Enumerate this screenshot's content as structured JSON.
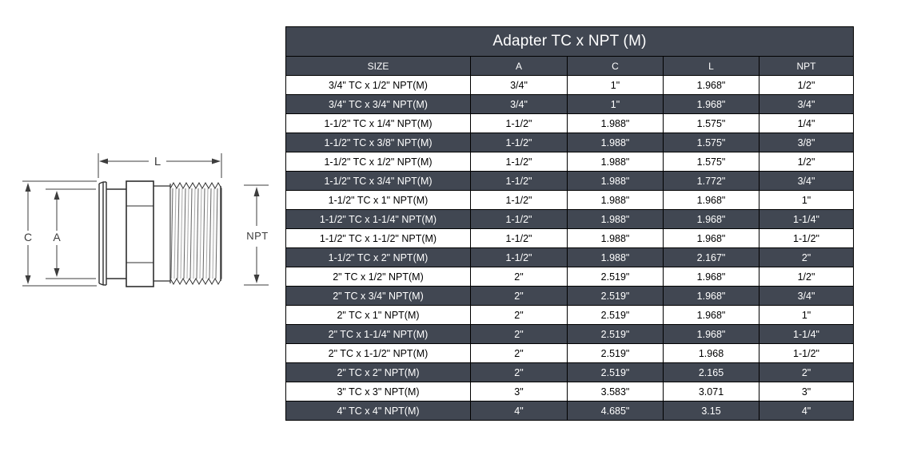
{
  "diagram": {
    "labels": {
      "length": "L",
      "clamp_od": "C",
      "tube_od": "A",
      "thread": "NPT"
    }
  },
  "table": {
    "title": "Adapter TC x NPT (M)",
    "columns": [
      "SIZE",
      "A",
      "C",
      "L",
      "NPT"
    ],
    "rows": [
      [
        "3/4\" TC x 1/2\" NPT(M)",
        "3/4\"",
        "1\"",
        "1.968\"",
        "1/2\""
      ],
      [
        "3/4\" TC x 3/4\" NPT(M)",
        "3/4\"",
        "1\"",
        "1.968\"",
        "3/4\""
      ],
      [
        "1-1/2\" TC x 1/4\" NPT(M)",
        "1-1/2\"",
        "1.988\"",
        "1.575\"",
        "1/4\""
      ],
      [
        "1-1/2\" TC x 3/8\" NPT(M)",
        "1-1/2\"",
        "1.988\"",
        "1.575\"",
        "3/8\""
      ],
      [
        "1-1/2\" TC x 1/2\" NPT(M)",
        "1-1/2\"",
        "1.988\"",
        "1.575\"",
        "1/2\""
      ],
      [
        "1-1/2\" TC x 3/4\" NPT(M)",
        "1-1/2\"",
        "1.988\"",
        "1.772\"",
        "3/4\""
      ],
      [
        "1-1/2\" TC x 1\" NPT(M)",
        "1-1/2\"",
        "1.988\"",
        "1.968\"",
        "1\""
      ],
      [
        "1-1/2\" TC x 1-1/4\" NPT(M)",
        "1-1/2\"",
        "1.988\"",
        "1.968\"",
        "1-1/4\""
      ],
      [
        "1-1/2\" TC x 1-1/2\" NPT(M)",
        "1-1/2\"",
        "1.988\"",
        "1.968\"",
        "1-1/2\""
      ],
      [
        "1-1/2\" TC x 2\" NPT(M)",
        "1-1/2\"",
        "1.988\"",
        "2.167\"",
        "2\""
      ],
      [
        "2\" TC x 1/2\" NPT(M)",
        "2\"",
        "2.519\"",
        "1.968\"",
        "1/2\""
      ],
      [
        "2\" TC x 3/4\" NPT(M)",
        "2\"",
        "2.519\"",
        "1.968\"",
        "3/4\""
      ],
      [
        "2\" TC x 1\" NPT(M)",
        "2\"",
        "2.519\"",
        "1.968\"",
        "1\""
      ],
      [
        "2\" TC x 1-1/4\" NPT(M)",
        "2\"",
        "2.519\"",
        "1.968\"",
        "1-1/4\""
      ],
      [
        "2\" TC x 1-1/2\" NPT(M)",
        "2\"",
        "2.519\"",
        "1.968",
        "1-1/2\""
      ],
      [
        "2\" TC x 2\" NPT(M)",
        "2\"",
        "2.519\"",
        "2.165",
        "2\""
      ],
      [
        "3\" TC x 3\" NPT(M)",
        "3\"",
        "3.583\"",
        "3.071",
        "3\""
      ],
      [
        "4\" TC x 4\" NPT(M)",
        "4\"",
        "4.685\"",
        "3.15",
        "4\""
      ]
    ],
    "colors": {
      "header_bg": "#414752",
      "alt_row_bg": "#414752",
      "row_bg": "#ffffff",
      "border": "#000000",
      "header_text": "#ffffff"
    }
  }
}
